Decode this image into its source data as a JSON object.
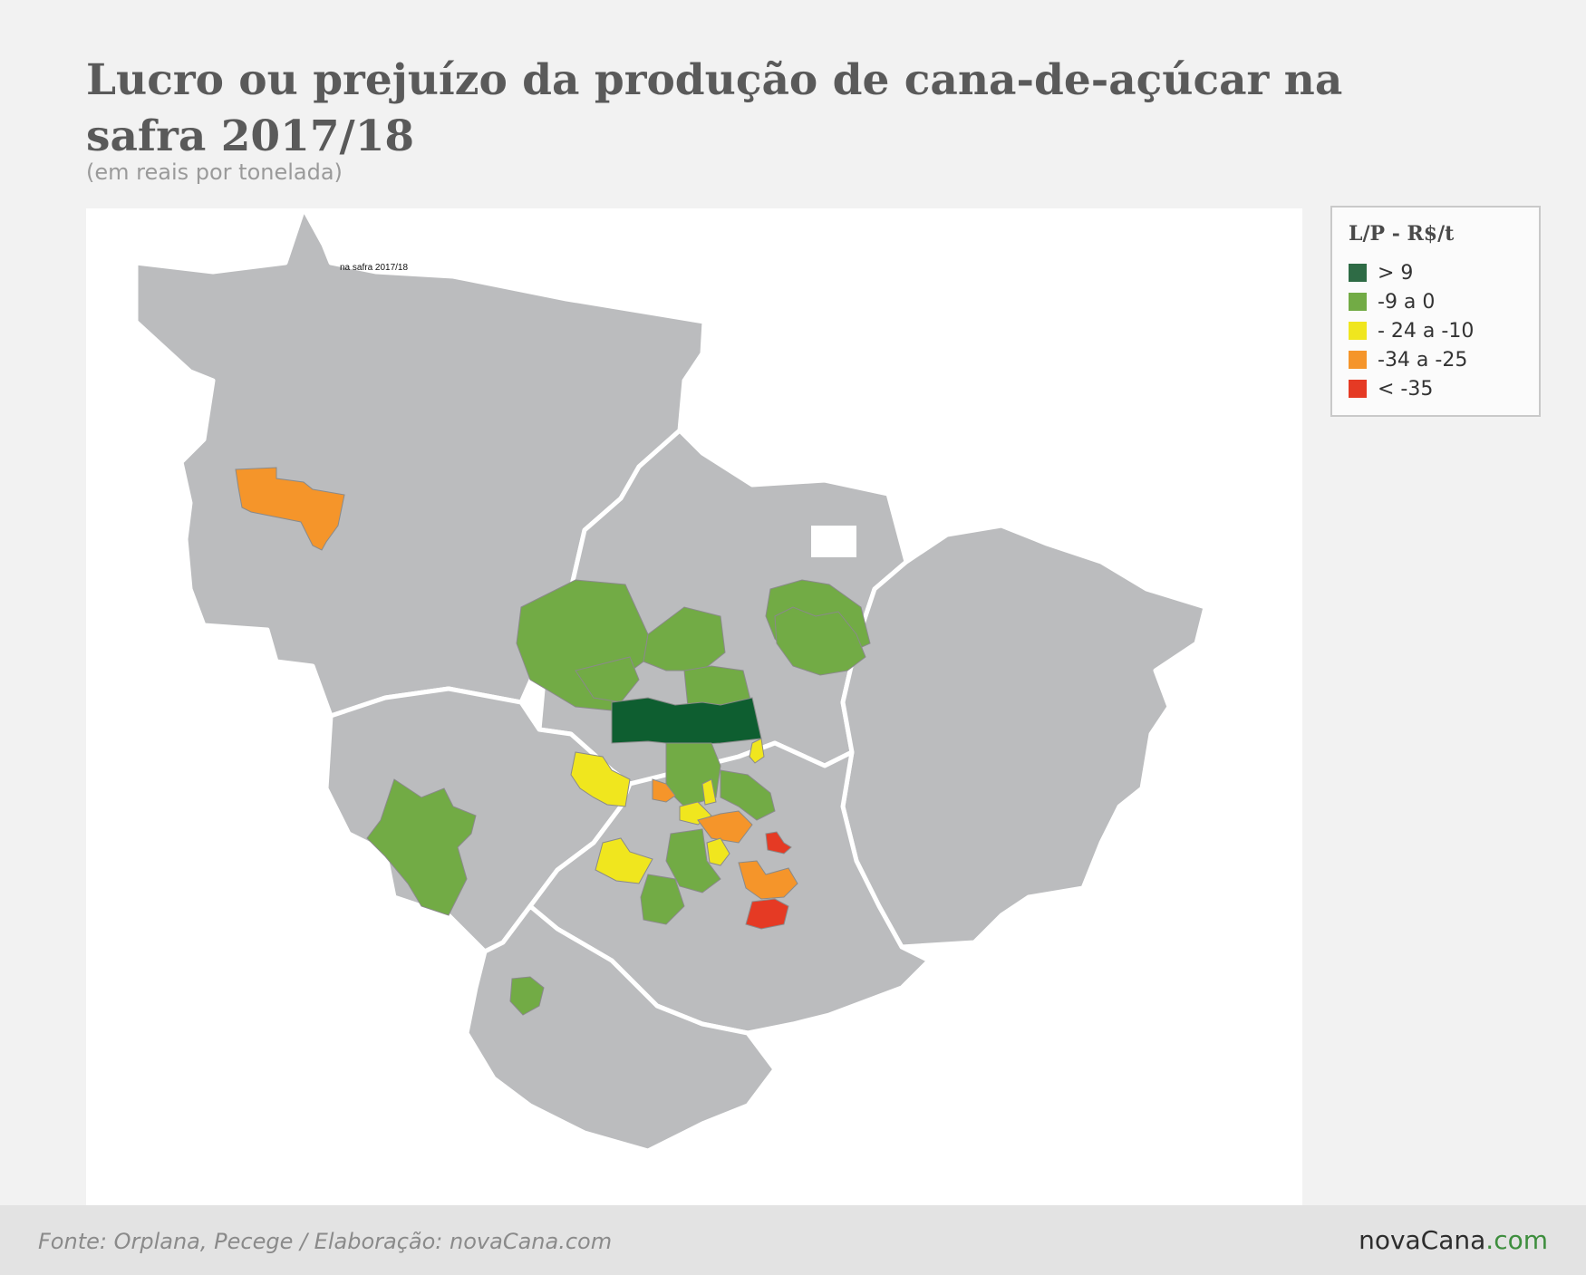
{
  "header": {
    "title": "Lucro ou prejuízo da produção de cana-de-açúcar na safra 2017/18",
    "subtitle": "(em reais por tonelada)"
  },
  "map": {
    "inset_label": "na safra 2017/18",
    "base_color": "#bbbcbe",
    "border_color": "#ffffff"
  },
  "legend": {
    "title": "L/P - R$/t",
    "items": [
      {
        "label": "> 9",
        "color": "#2e6b45"
      },
      {
        "label": "-9 a 0",
        "color": "#72ab45"
      },
      {
        "label": "- 24 a -10",
        "color": "#f0e61e"
      },
      {
        "label": "-34 a -25",
        "color": "#f5952a"
      },
      {
        "label": "< -35",
        "color": "#e53a24"
      }
    ]
  },
  "footer": {
    "source": "Fonte: Orplana, Pecege / Elaboração: novaCana.com",
    "brand_main": "novaCana",
    "brand_tld": ".com"
  }
}
